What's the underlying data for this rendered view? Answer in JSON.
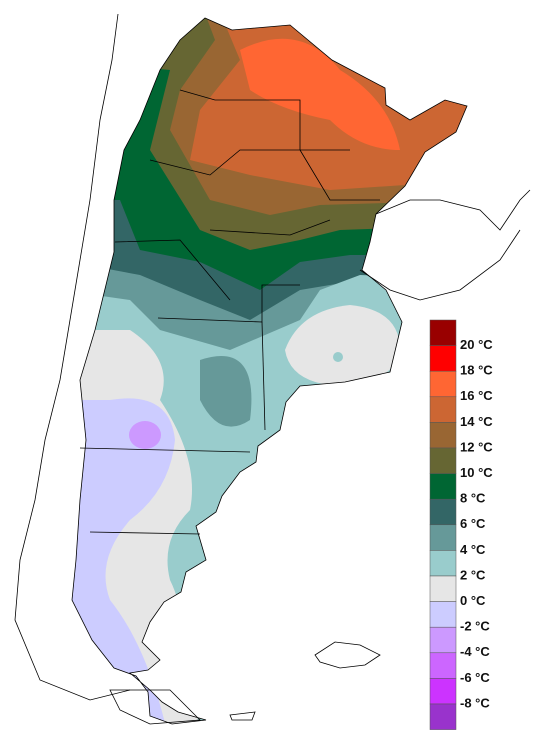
{
  "legend": {
    "colors": [
      "#990000",
      "#ff0000",
      "#ff6633",
      "#cc6633",
      "#996633",
      "#666633",
      "#006633",
      "#336666",
      "#669999",
      "#99cccc",
      "#e6e6e6",
      "#ccccff",
      "#cc99ff",
      "#cc66ff",
      "#cc33ff",
      "#9933cc"
    ],
    "labels": [
      "20 °C",
      "18 °C",
      "16 °C",
      "14 °C",
      "12 °C",
      "10 °C",
      "8 °C",
      "6 °C",
      "4 °C",
      "2 °C",
      "0 °C",
      "-2 °C",
      "-4 °C",
      "-6 °C",
      "-8 °C"
    ]
  }
}
